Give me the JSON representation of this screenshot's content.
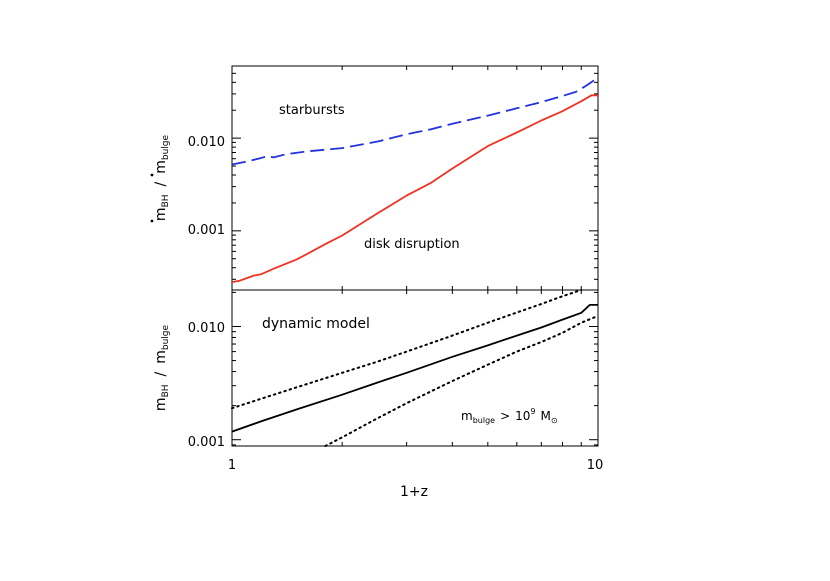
{
  "chart_data": [
    {
      "type": "line",
      "panel": "top",
      "ylabel_parts": {
        "m": "m",
        "bh_sub": "BH",
        "slash": "/",
        "bulge_sub": "bulge"
      },
      "x_scale": "log",
      "y_scale": "log",
      "xlim": [
        1,
        10
      ],
      "ylim": [
        0.00023,
        0.06
      ],
      "y_ticks": [
        0.001,
        0.01
      ],
      "y_tick_labels": [
        "0.001",
        "0.010"
      ],
      "annotations": [
        "starbursts",
        "disk disruption"
      ],
      "series": [
        {
          "label_ref": "starbursts",
          "color": "#2233dd",
          "style": "dashed",
          "x": [
            1.0,
            1.1,
            1.2,
            1.25,
            1.3,
            1.4,
            1.6,
            1.8,
            2.0,
            2.5,
            3.0,
            3.5,
            4.0,
            5.0,
            6.0,
            7.0,
            8.0,
            8.7,
            9.3,
            10.0
          ],
          "y": [
            0.0052,
            0.0056,
            0.0061,
            0.0064,
            0.0062,
            0.0067,
            0.0072,
            0.0075,
            0.0078,
            0.0092,
            0.011,
            0.0125,
            0.0143,
            0.0175,
            0.021,
            0.0245,
            0.0285,
            0.0315,
            0.037,
            0.045
          ]
        },
        {
          "label_ref": "disk disruption",
          "color": "#ee3322",
          "style": "solid",
          "x": [
            1.0,
            1.05,
            1.1,
            1.15,
            1.2,
            1.3,
            1.4,
            1.5,
            1.6,
            1.8,
            2.0,
            2.5,
            3.0,
            3.5,
            4.0,
            5.0,
            6.0,
            7.0,
            8.0,
            9.0,
            9.6,
            10.0
          ],
          "y": [
            0.00028,
            0.00029,
            0.00031,
            0.00033,
            0.00034,
            0.00039,
            0.00044,
            0.00049,
            0.00056,
            0.00072,
            0.00089,
            0.00155,
            0.0024,
            0.0033,
            0.0047,
            0.0082,
            0.0115,
            0.0155,
            0.0195,
            0.025,
            0.029,
            0.029
          ]
        }
      ]
    },
    {
      "type": "line",
      "panel": "bottom",
      "ylabel_parts": {
        "m": "m",
        "bh_sub": "BH",
        "slash": "/",
        "bulge_sub": "bulge"
      },
      "xlabel": "1+z",
      "x_scale": "log",
      "y_scale": "log",
      "xlim": [
        1,
        10
      ],
      "ylim": [
        0.00088,
        0.021
      ],
      "x_ticks": [
        1,
        10
      ],
      "x_tick_labels": [
        "1",
        "10"
      ],
      "y_ticks": [
        0.001,
        0.01
      ],
      "y_tick_labels": [
        "0.001",
        "0.010"
      ],
      "annotations": [
        "dynamic model"
      ],
      "condition": {
        "m": "m",
        "sub": "bulge",
        "gt": ">",
        "base": "10",
        "exp": "9",
        "unit": "M",
        "sun_symbol": "⊙"
      },
      "series": [
        {
          "style": "solid",
          "color": "#000000",
          "x": [
            1.0,
            1.2,
            1.5,
            2.0,
            2.5,
            3.0,
            4.0,
            5.0,
            6.0,
            7.0,
            8.0,
            9.0,
            9.5,
            10.0
          ],
          "y": [
            0.00118,
            0.00145,
            0.00185,
            0.0025,
            0.0032,
            0.0039,
            0.0054,
            0.0068,
            0.0083,
            0.0098,
            0.0115,
            0.0132,
            0.0155,
            0.0155
          ]
        },
        {
          "style": "dotted",
          "color": "#000000",
          "x": [
            1.0,
            1.2,
            1.5,
            2.0,
            2.5,
            3.0,
            4.0,
            5.0,
            6.0,
            7.0,
            8.0,
            9.0
          ],
          "y": [
            0.0019,
            0.0023,
            0.0029,
            0.0039,
            0.0049,
            0.006,
            0.0083,
            0.0108,
            0.0133,
            0.0158,
            0.0185,
            0.021
          ]
        },
        {
          "style": "dotted",
          "color": "#000000",
          "x": [
            1.8,
            2.0,
            2.5,
            3.0,
            4.0,
            5.0,
            6.0,
            7.0,
            8.0,
            9.0,
            10.0
          ],
          "y": [
            0.00088,
            0.00105,
            0.00155,
            0.0021,
            0.0033,
            0.0046,
            0.006,
            0.0073,
            0.0088,
            0.0108,
            0.0124
          ]
        }
      ]
    }
  ]
}
